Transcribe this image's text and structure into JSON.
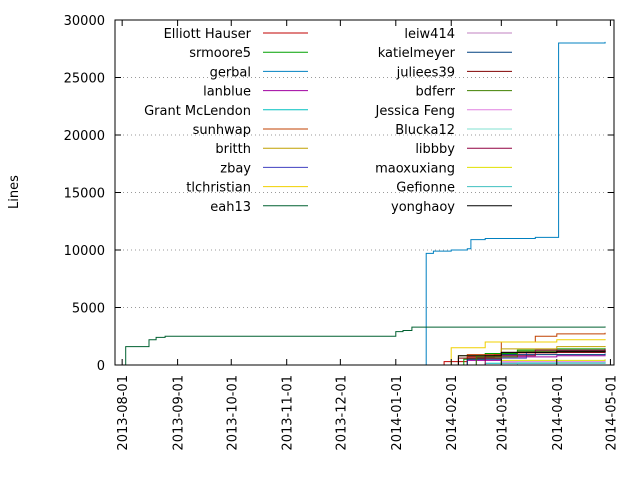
{
  "chart_data": {
    "type": "line",
    "title": "",
    "xlabel": "",
    "ylabel": "Lines",
    "ylim": [
      0,
      30000
    ],
    "xlim": [
      "2013-07-28",
      "2014-05-03"
    ],
    "grid": {
      "y": true,
      "x": false,
      "style": "dotted"
    },
    "legend_placement": "top-left, two columns",
    "y_ticks": [
      {
        "value": 0,
        "label": "0"
      },
      {
        "value": 5000,
        "label": "5000"
      },
      {
        "value": 10000,
        "label": "10000"
      },
      {
        "value": 15000,
        "label": "15000"
      },
      {
        "value": 20000,
        "label": "20000"
      },
      {
        "value": 25000,
        "label": "25000"
      },
      {
        "value": 30000,
        "label": "30000"
      }
    ],
    "x_ticks": [
      {
        "value": "2013-08-01",
        "label": "2013-08-01"
      },
      {
        "value": "2013-09-01",
        "label": "2013-09-01"
      },
      {
        "value": "2013-10-01",
        "label": "2013-10-01"
      },
      {
        "value": "2013-11-01",
        "label": "2013-11-01"
      },
      {
        "value": "2013-12-01",
        "label": "2013-12-01"
      },
      {
        "value": "2014-01-01",
        "label": "2014-01-01"
      },
      {
        "value": "2014-02-01",
        "label": "2014-02-01"
      },
      {
        "value": "2014-03-01",
        "label": "2014-03-01"
      },
      {
        "value": "2014-04-01",
        "label": "2014-04-01"
      },
      {
        "value": "2014-05-01",
        "label": "2014-05-01"
      }
    ],
    "series": [
      {
        "name": "Elliott Hauser",
        "color": "#c00000",
        "points": [
          [
            "2014-01-20",
            0
          ],
          [
            "2014-01-28",
            300
          ],
          [
            "2014-02-10",
            700
          ],
          [
            "2014-02-25",
            900
          ],
          [
            "2014-03-10",
            1050
          ],
          [
            "2014-04-01",
            1150
          ],
          [
            "2014-04-28",
            1200
          ]
        ]
      },
      {
        "name": "srmoore5",
        "color": "#00a000",
        "points": [
          [
            "2014-01-25",
            0
          ],
          [
            "2014-02-08",
            500
          ],
          [
            "2014-02-20",
            1000
          ],
          [
            "2014-03-10",
            1300
          ],
          [
            "2014-04-01",
            1400
          ],
          [
            "2014-04-28",
            1450
          ]
        ]
      },
      {
        "name": "gerbal",
        "color": "#0080c0",
        "points": [
          [
            "2014-01-15",
            0
          ],
          [
            "2014-01-18",
            9700
          ],
          [
            "2014-01-22",
            9900
          ],
          [
            "2014-02-01",
            10000
          ],
          [
            "2014-02-10",
            10100
          ],
          [
            "2014-02-12",
            10900
          ],
          [
            "2014-02-20",
            11000
          ],
          [
            "2014-03-20",
            11100
          ],
          [
            "2014-04-01",
            11100
          ],
          [
            "2014-04-02",
            28000
          ],
          [
            "2014-04-28",
            28100
          ]
        ]
      },
      {
        "name": "lanblue",
        "color": "#a000a0",
        "points": [
          [
            "2014-01-25",
            0
          ],
          [
            "2014-02-10",
            400
          ],
          [
            "2014-03-01",
            700
          ],
          [
            "2014-04-01",
            800
          ],
          [
            "2014-04-28",
            850
          ]
        ]
      },
      {
        "name": "Grant McLendon",
        "color": "#00c0c0",
        "points": [
          [
            "2014-01-30",
            0
          ],
          [
            "2014-02-20",
            150
          ],
          [
            "2014-04-01",
            200
          ],
          [
            "2014-04-28",
            220
          ]
        ]
      },
      {
        "name": "sunhwap",
        "color": "#c04000",
        "points": [
          [
            "2014-01-25",
            0
          ],
          [
            "2014-02-10",
            900
          ],
          [
            "2014-03-01",
            2000
          ],
          [
            "2014-03-20",
            2500
          ],
          [
            "2014-04-01",
            2700
          ],
          [
            "2014-04-28",
            2800
          ]
        ]
      },
      {
        "name": "britth",
        "color": "#c0a000",
        "points": [
          [
            "2014-01-22",
            0
          ],
          [
            "2014-02-05",
            800
          ],
          [
            "2014-03-01",
            1400
          ],
          [
            "2014-04-01",
            1600
          ],
          [
            "2014-04-28",
            1650
          ]
        ]
      },
      {
        "name": "zbay",
        "color": "#4040c0",
        "points": [
          [
            "2014-01-25",
            0
          ],
          [
            "2014-02-15",
            600
          ],
          [
            "2014-03-15",
            1100
          ],
          [
            "2014-04-28",
            1200
          ]
        ]
      },
      {
        "name": "tlchristian",
        "color": "#f0d000",
        "points": [
          [
            "2014-01-20",
            0
          ],
          [
            "2014-02-01",
            1500
          ],
          [
            "2014-02-20",
            2000
          ],
          [
            "2014-04-01",
            2200
          ],
          [
            "2014-04-28",
            2250
          ]
        ]
      },
      {
        "name": "eah13",
        "color": "#006030",
        "points": [
          [
            "2013-08-02",
            0
          ],
          [
            "2013-08-03",
            1600
          ],
          [
            "2013-08-15",
            1600
          ],
          [
            "2013-08-16",
            2200
          ],
          [
            "2013-08-20",
            2400
          ],
          [
            "2013-08-25",
            2500
          ],
          [
            "2013-12-31",
            2500
          ],
          [
            "2014-01-01",
            2900
          ],
          [
            "2014-01-05",
            3000
          ],
          [
            "2014-01-10",
            3300
          ],
          [
            "2014-04-28",
            3350
          ]
        ]
      },
      {
        "name": "leiw414",
        "color": "#c080c0",
        "points": [
          [
            "2014-02-01",
            0
          ],
          [
            "2014-03-01",
            200
          ],
          [
            "2014-04-28",
            250
          ]
        ]
      },
      {
        "name": "katielmeyer",
        "color": "#004080",
        "points": [
          [
            "2014-01-25",
            0
          ],
          [
            "2014-02-10",
            500
          ],
          [
            "2014-03-01",
            900
          ],
          [
            "2014-04-28",
            1000
          ]
        ]
      },
      {
        "name": "juliees39",
        "color": "#800000",
        "points": [
          [
            "2014-01-22",
            0
          ],
          [
            "2014-02-05",
            600
          ],
          [
            "2014-03-01",
            1100
          ],
          [
            "2014-04-28",
            1300
          ]
        ]
      },
      {
        "name": "bdferr",
        "color": "#408000",
        "points": [
          [
            "2014-01-25",
            0
          ],
          [
            "2014-02-15",
            700
          ],
          [
            "2014-03-10",
            1200
          ],
          [
            "2014-04-28",
            1300
          ]
        ]
      },
      {
        "name": "Jessica Feng",
        "color": "#e080e0",
        "points": [
          [
            "2014-02-01",
            0
          ],
          [
            "2014-03-01",
            300
          ],
          [
            "2014-04-28",
            400
          ]
        ]
      },
      {
        "name": "Blucka12",
        "color": "#80e0d0",
        "points": [
          [
            "2014-02-01",
            0
          ],
          [
            "2014-03-10",
            200
          ],
          [
            "2014-04-28",
            300
          ]
        ]
      },
      {
        "name": "libbby",
        "color": "#900040",
        "points": [
          [
            "2014-01-28",
            0
          ],
          [
            "2014-02-20",
            800
          ],
          [
            "2014-03-20",
            1300
          ],
          [
            "2014-04-28",
            1400
          ]
        ]
      },
      {
        "name": "maoxuxiang",
        "color": "#e0e000",
        "points": [
          [
            "2014-02-01",
            0
          ],
          [
            "2014-03-01",
            400
          ],
          [
            "2014-04-28",
            500
          ]
        ]
      },
      {
        "name": "Gefionne",
        "color": "#40c0c0",
        "points": [
          [
            "2014-02-01",
            0
          ],
          [
            "2014-03-01",
            150
          ],
          [
            "2014-04-28",
            200
          ]
        ]
      },
      {
        "name": "yonghaoy",
        "color": "#000000",
        "points": [
          [
            "2014-01-22",
            0
          ],
          [
            "2014-02-05",
            800
          ],
          [
            "2014-03-01",
            1100
          ],
          [
            "2014-04-01",
            1200
          ],
          [
            "2014-04-28",
            1250
          ]
        ]
      }
    ]
  }
}
